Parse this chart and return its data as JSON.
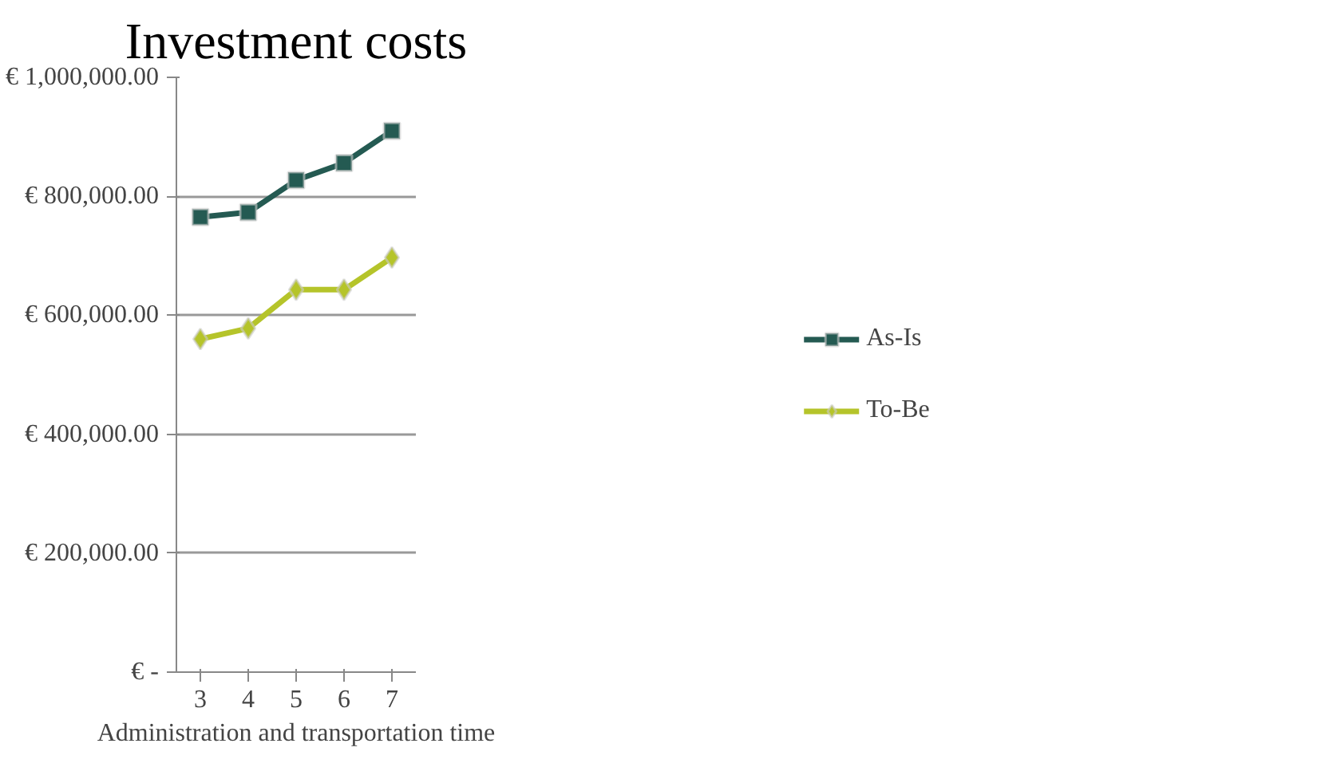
{
  "chart_data": {
    "type": "line",
    "title": "Investment costs",
    "xlabel": "Administration and transportation time",
    "categories": [
      "3",
      "4",
      "5",
      "6",
      "7"
    ],
    "series": [
      {
        "name": "As-Is",
        "color": "#245a52",
        "marker": "square",
        "values": [
          765000,
          773000,
          827000,
          856000,
          910000
        ]
      },
      {
        "name": "To-Be",
        "color": "#b5c42a",
        "marker": "diamond",
        "values": [
          560000,
          578000,
          643000,
          643000,
          697000
        ]
      }
    ],
    "ylim": [
      0,
      1000000
    ],
    "yticks": [
      {
        "value": 0,
        "label": "€ -"
      },
      {
        "value": 200000,
        "label": "€ 200,000.00"
      },
      {
        "value": 400000,
        "label": "€ 400,000.00"
      },
      {
        "value": 600000,
        "label": "€ 600,000.00"
      },
      {
        "value": 800000,
        "label": "€ 800,000.00"
      },
      {
        "value": 1000000,
        "label": "€ 1,000,000.00"
      }
    ],
    "grid": "y",
    "legend": "right",
    "line_style": "solid"
  }
}
